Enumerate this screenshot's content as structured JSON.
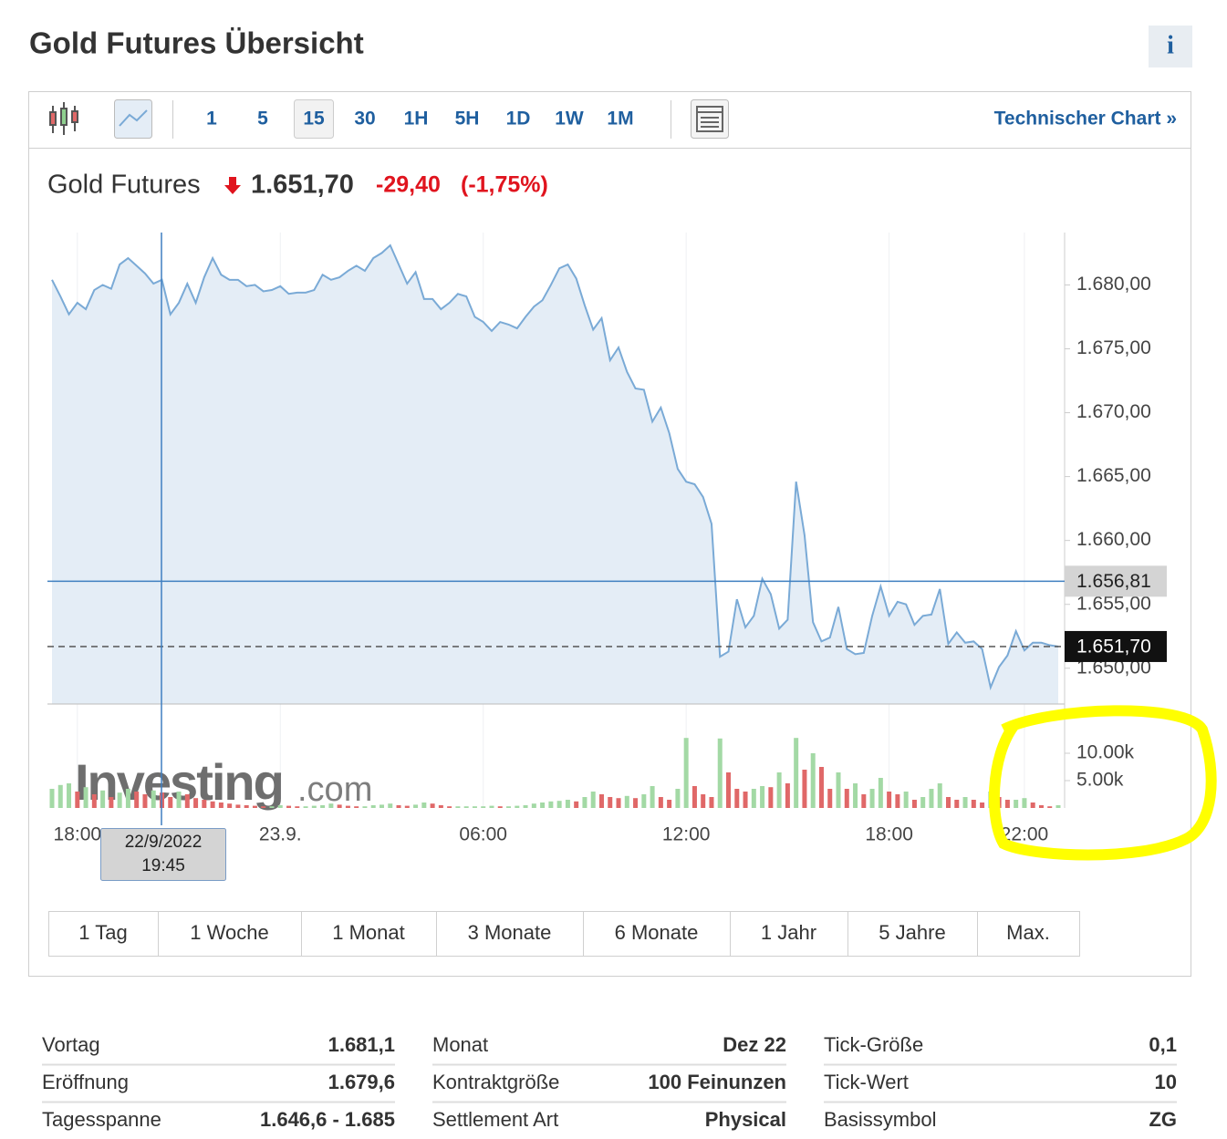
{
  "header": {
    "title": "Gold Futures Übersicht",
    "info": "i"
  },
  "toolbar": {
    "intervals": [
      "1",
      "5",
      "15",
      "30",
      "1H",
      "5H",
      "1D",
      "1W",
      "1M"
    ],
    "selected_interval": "15",
    "link": "Technischer Chart »"
  },
  "chart_data": {
    "type": "line",
    "title": "Gold Futures",
    "last": {
      "value": 1651.7,
      "label": "1.651,70"
    },
    "change": "-29,40",
    "change_percent": "(-1,75%)",
    "categories": [
      null,
      null,
      null,
      "18:00",
      null,
      null,
      null,
      null,
      null,
      null,
      null,
      null,
      null,
      null,
      null,
      null,
      null,
      null,
      null,
      null,
      null,
      null,
      null,
      null,
      null,
      null,
      null,
      "23.9.",
      null,
      null,
      null,
      null,
      null,
      null,
      null,
      null,
      null,
      null,
      null,
      null,
      null,
      null,
      null,
      null,
      null,
      null,
      null,
      null,
      null,
      null,
      null,
      "06:00",
      null,
      null,
      null,
      null,
      null,
      null,
      null,
      null,
      null,
      null,
      null,
      null,
      null,
      null,
      null,
      null,
      null,
      null,
      null,
      null,
      null,
      null,
      null,
      "12:00",
      null,
      null,
      null,
      null,
      null,
      null,
      null,
      null,
      null,
      null,
      null,
      null,
      null,
      null,
      null,
      null,
      null,
      null,
      null,
      null,
      null,
      null,
      null,
      "18:00",
      null,
      null,
      null,
      null,
      null,
      null,
      null,
      null,
      null,
      null,
      null,
      null,
      null,
      null,
      null,
      "22:00",
      null,
      null,
      null,
      null
    ],
    "series": [
      {
        "color": "#7aaad6",
        "fill": "#e4edf6",
        "values": [
          1680.4,
          1679.1,
          1677.7,
          1678.6,
          1678.1,
          1679.6,
          1680.0,
          1679.7,
          1681.6,
          1682.1,
          1681.5,
          1680.9,
          1680.1,
          1680.4,
          1677.7,
          1678.6,
          1680.1,
          1678.6,
          1680.6,
          1682.1,
          1680.8,
          1680.4,
          1680.4,
          1679.9,
          1680.0,
          1679.5,
          1679.6,
          1679.9,
          1679.3,
          1679.4,
          1679.4,
          1679.6,
          1680.8,
          1680.4,
          1680.6,
          1681.1,
          1681.5,
          1681.1,
          1682.1,
          1682.5,
          1683.1,
          1681.6,
          1680.1,
          1681.0,
          1678.9,
          1678.9,
          1678.1,
          1678.6,
          1679.3,
          1679.1,
          1677.5,
          1677.1,
          1676.4,
          1677.1,
          1676.9,
          1676.6,
          1677.5,
          1678.3,
          1678.8,
          1680.0,
          1681.3,
          1681.6,
          1680.5,
          1678.4,
          1676.5,
          1677.4,
          1674.1,
          1675.1,
          1673.2,
          1671.9,
          1671.8,
          1669.3,
          1670.4,
          1668.4,
          1665.6,
          1664.6,
          1664.4,
          1663.4,
          1661.3,
          1650.9,
          1651.3,
          1655.4,
          1653.2,
          1654.1,
          1657.0,
          1655.8,
          1653.1,
          1653.8,
          1664.6,
          1660.4,
          1653.6,
          1652.1,
          1652.4,
          1654.8,
          1651.5,
          1651.1,
          1651.2,
          1654.1,
          1656.4,
          1654.1,
          1655.2,
          1655.0,
          1653.4,
          1654.1,
          1654.2,
          1656.2,
          1651.9,
          1652.8,
          1652.0,
          1652.1,
          1651.5,
          1648.5,
          1650.1,
          1651.0,
          1652.9,
          1651.4,
          1652.0,
          1652.0,
          1651.8,
          1651.7
        ]
      },
      {
        "type": "bar",
        "axis": "y2",
        "up_color": "#a3d9a5",
        "down_color": "#e06868",
        "values": [
          3.5,
          4.2,
          4.5,
          3.0,
          3.8,
          2.5,
          3.2,
          2.0,
          2.8,
          3.5,
          3.0,
          2.5,
          3.2,
          2.8,
          2.0,
          3.0,
          2.5,
          1.8,
          1.5,
          1.2,
          1.0,
          0.8,
          0.6,
          0.5,
          0.4,
          0.3,
          0.3,
          0.5,
          0.4,
          0.3,
          0.3,
          0.4,
          0.5,
          0.8,
          0.6,
          0.4,
          0.3,
          0.3,
          0.5,
          0.6,
          0.8,
          0.5,
          0.4,
          0.6,
          1.0,
          0.8,
          0.5,
          0.3,
          0.3,
          0.3,
          0.3,
          0.3,
          0.4,
          0.3,
          0.3,
          0.4,
          0.5,
          0.8,
          1.0,
          1.2,
          1.3,
          1.5,
          1.2,
          2.0,
          3.0,
          2.5,
          2.0,
          1.8,
          2.2,
          1.8,
          2.5,
          4.0,
          2.0,
          1.5,
          3.5,
          12.8,
          4.0,
          2.5,
          2.0,
          12.7,
          6.5,
          3.5,
          3.0,
          3.5,
          4.0,
          3.8,
          6.5,
          4.5,
          12.8,
          7.0,
          10.0,
          7.5,
          3.5,
          6.5,
          3.5,
          4.5,
          2.5,
          3.5,
          5.5,
          3.0,
          2.5,
          3.0,
          1.5,
          2.0,
          3.5,
          4.5,
          2.0,
          1.5,
          2.0,
          1.5,
          1.0,
          3.0,
          2.0,
          1.5,
          1.5,
          1.8,
          1.0,
          0.5,
          0.3,
          0.5
        ]
      }
    ],
    "ylim": [
      1647.2,
      1684.1
    ],
    "yticks": [
      {
        "value": 1650,
        "label": "1.650,00"
      },
      {
        "value": 1655,
        "label": "1.655,00"
      },
      {
        "value": 1660,
        "label": "1.660,00"
      },
      {
        "value": 1665,
        "label": "1.665,00"
      },
      {
        "value": 1670,
        "label": "1.670,00"
      },
      {
        "value": 1675,
        "label": "1.675,00"
      },
      {
        "value": 1680,
        "label": "1.680,00"
      }
    ],
    "y2lim": [
      0,
      18.5
    ],
    "y2ticks": [
      {
        "value": 5,
        "label": "5.00k"
      },
      {
        "value": 10,
        "label": "10.00k"
      }
    ],
    "grid": "x",
    "crosshair": {
      "price": {
        "value": 1656.81,
        "label": "1.656,81"
      },
      "date": "22/9/2022",
      "time": "19:45"
    },
    "watermark": [
      "Investing",
      ".com"
    ]
  },
  "ranges": [
    "1 Tag",
    "1 Woche",
    "1 Monat",
    "3 Monate",
    "6 Monate",
    "1 Jahr",
    "5 Jahre",
    "Max."
  ],
  "stats": [
    [
      [
        "Vortag",
        "1.681,1"
      ],
      [
        "Eröffnung",
        "1.679,6"
      ],
      [
        "Tagesspanne",
        "1.646,6 - 1.685"
      ]
    ],
    [
      [
        "Monat",
        "Dez 22"
      ],
      [
        "Kontraktgröße",
        "100 Feinunzen"
      ],
      [
        "Settlement Art",
        "Physical"
      ]
    ],
    [
      [
        "Tick-Größe",
        "0,1"
      ],
      [
        "Tick-Wert",
        "10"
      ],
      [
        "Basissymbol",
        "ZG"
      ]
    ]
  ]
}
